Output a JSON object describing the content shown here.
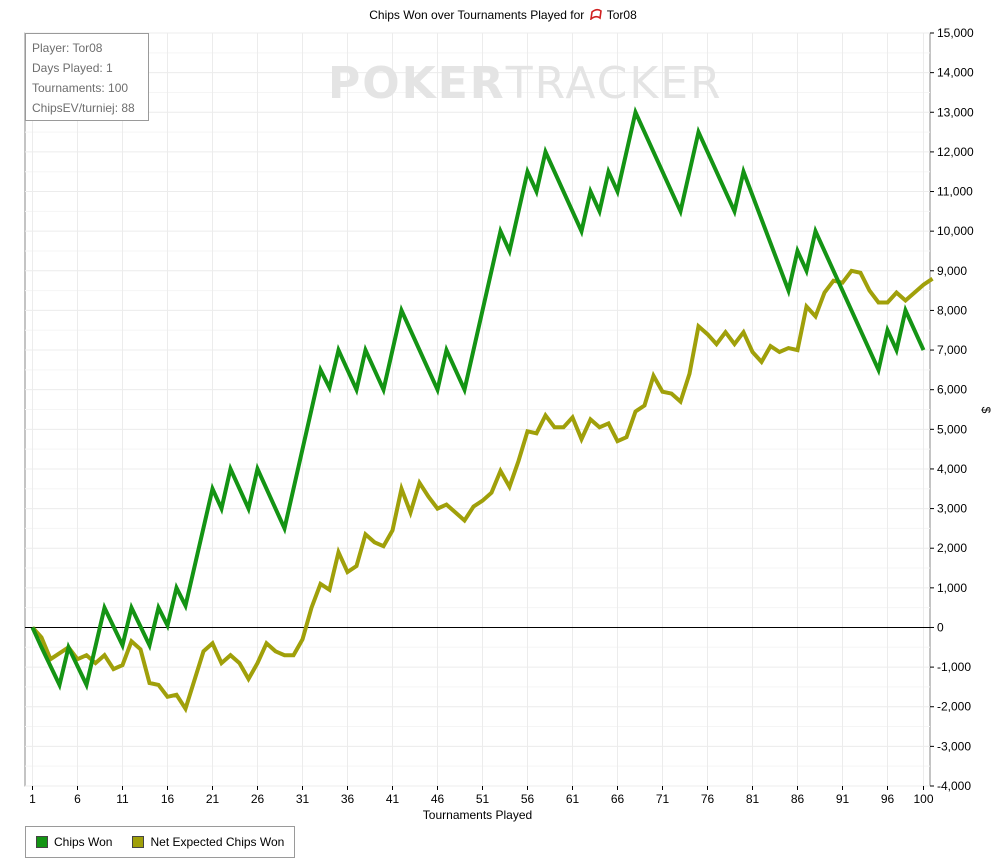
{
  "title": "Chips Won over Tournaments Played for",
  "player_name": "Tor08",
  "info": {
    "player": "Player: Tor08",
    "days": "Days Played: 1",
    "tournaments": "Tournaments: 100",
    "chipsev": "ChipsEV/turniej: 88"
  },
  "watermark": {
    "bold": "POKER",
    "thin": "TRACKER"
  },
  "colors": {
    "chips_won": "#149414",
    "net_expected": "#a0a00a",
    "grid": "#ececec",
    "axis": "#000000"
  },
  "chart_data": {
    "type": "line",
    "xlabel": "Tournaments Played",
    "ylabel": "$",
    "xlim": [
      1,
      100
    ],
    "ylim": [
      -4000,
      15000
    ],
    "x_ticks": [
      1,
      6,
      11,
      16,
      21,
      26,
      31,
      36,
      41,
      46,
      51,
      56,
      61,
      66,
      71,
      76,
      81,
      86,
      91,
      96,
      100
    ],
    "y_ticks": [
      -4000,
      -3000,
      -2000,
      -1000,
      0,
      1000,
      2000,
      3000,
      4000,
      5000,
      6000,
      7000,
      8000,
      9000,
      10000,
      11000,
      12000,
      13000,
      14000,
      15000
    ],
    "y_tick_labels": [
      "-4,000",
      "-3,000",
      "-2,000",
      "-1,000",
      "0",
      "1,000",
      "2,000",
      "3,000",
      "4,000",
      "5,000",
      "6,000",
      "7,000",
      "8,000",
      "9,000",
      "10,000",
      "11,000",
      "12,000",
      "13,000",
      "14,000",
      "15,000"
    ],
    "grid": true,
    "legend_position": "bottom-left",
    "series": [
      {
        "name": "Chips Won",
        "points": [
          [
            0,
            0
          ],
          [
            1,
            -500
          ],
          [
            3,
            -1450
          ],
          [
            4,
            -500
          ],
          [
            6,
            -1450
          ],
          [
            8,
            500
          ],
          [
            10,
            -450
          ],
          [
            11,
            500
          ],
          [
            13,
            -450
          ],
          [
            14,
            500
          ],
          [
            15,
            50
          ],
          [
            16,
            1000
          ],
          [
            17,
            550
          ],
          [
            20,
            3500
          ],
          [
            21,
            3000
          ],
          [
            22,
            4000
          ],
          [
            24,
            3000
          ],
          [
            25,
            4000
          ],
          [
            28,
            2500
          ],
          [
            32,
            6500
          ],
          [
            33,
            6050
          ],
          [
            34,
            7000
          ],
          [
            36,
            6000
          ],
          [
            37,
            7000
          ],
          [
            39,
            6000
          ],
          [
            41,
            8000
          ],
          [
            45,
            6000
          ],
          [
            46,
            7000
          ],
          [
            48,
            6000
          ],
          [
            52,
            10000
          ],
          [
            53,
            9500
          ],
          [
            55,
            11500
          ],
          [
            56,
            11000
          ],
          [
            57,
            12000
          ],
          [
            61,
            10000
          ],
          [
            62,
            11000
          ],
          [
            63,
            10500
          ],
          [
            64,
            11500
          ],
          [
            65,
            11000
          ],
          [
            67,
            13000
          ],
          [
            72,
            10500
          ],
          [
            74,
            12500
          ],
          [
            78,
            10500
          ],
          [
            79,
            11500
          ],
          [
            84,
            8500
          ],
          [
            85,
            9500
          ],
          [
            86,
            9000
          ],
          [
            87,
            10000
          ],
          [
            94,
            6500
          ],
          [
            95,
            7500
          ],
          [
            96,
            7000
          ],
          [
            97,
            8000
          ],
          [
            99,
            7000
          ]
        ]
      },
      {
        "name": "Net Expected Chips Won",
        "points": [
          [
            0,
            0
          ],
          [
            1,
            -250
          ],
          [
            2,
            -800
          ],
          [
            4,
            -500
          ],
          [
            5,
            -800
          ],
          [
            6,
            -700
          ],
          [
            7,
            -900
          ],
          [
            8,
            -700
          ],
          [
            9,
            -1050
          ],
          [
            10,
            -950
          ],
          [
            11,
            -350
          ],
          [
            12,
            -550
          ],
          [
            13,
            -1400
          ],
          [
            14,
            -1450
          ],
          [
            15,
            -1750
          ],
          [
            16,
            -1700
          ],
          [
            17,
            -2050
          ],
          [
            19,
            -600
          ],
          [
            20,
            -400
          ],
          [
            21,
            -900
          ],
          [
            22,
            -700
          ],
          [
            23,
            -900
          ],
          [
            24,
            -1300
          ],
          [
            25,
            -900
          ],
          [
            26,
            -400
          ],
          [
            27,
            -600
          ],
          [
            28,
            -700
          ],
          [
            29,
            -700
          ],
          [
            30,
            -300
          ],
          [
            31,
            500
          ],
          [
            32,
            1100
          ],
          [
            33,
            950
          ],
          [
            34,
            1900
          ],
          [
            35,
            1400
          ],
          [
            36,
            1550
          ],
          [
            37,
            2350
          ],
          [
            38,
            2150
          ],
          [
            39,
            2050
          ],
          [
            40,
            2450
          ],
          [
            41,
            3500
          ],
          [
            42,
            2900
          ],
          [
            43,
            3650
          ],
          [
            44,
            3300
          ],
          [
            45,
            3000
          ],
          [
            46,
            3100
          ],
          [
            47,
            2900
          ],
          [
            48,
            2700
          ],
          [
            49,
            3050
          ],
          [
            50,
            3200
          ],
          [
            51,
            3400
          ],
          [
            52,
            3950
          ],
          [
            53,
            3550
          ],
          [
            54,
            4200
          ],
          [
            55,
            4950
          ],
          [
            56,
            4900
          ],
          [
            57,
            5350
          ],
          [
            58,
            5050
          ],
          [
            59,
            5050
          ],
          [
            60,
            5300
          ],
          [
            61,
            4750
          ],
          [
            62,
            5250
          ],
          [
            63,
            5050
          ],
          [
            64,
            5150
          ],
          [
            65,
            4700
          ],
          [
            66,
            4800
          ],
          [
            67,
            5450
          ],
          [
            68,
            5600
          ],
          [
            69,
            6350
          ],
          [
            70,
            5950
          ],
          [
            71,
            5900
          ],
          [
            72,
            5700
          ],
          [
            73,
            6400
          ],
          [
            74,
            7600
          ],
          [
            75,
            7400
          ],
          [
            76,
            7150
          ],
          [
            77,
            7450
          ],
          [
            78,
            7150
          ],
          [
            79,
            7450
          ],
          [
            80,
            6950
          ],
          [
            81,
            6700
          ],
          [
            82,
            7100
          ],
          [
            83,
            6950
          ],
          [
            84,
            7050
          ],
          [
            85,
            7000
          ],
          [
            86,
            8100
          ],
          [
            87,
            7850
          ],
          [
            88,
            8450
          ],
          [
            89,
            8750
          ],
          [
            90,
            8700
          ],
          [
            91,
            9000
          ],
          [
            92,
            8950
          ],
          [
            93,
            8500
          ],
          [
            94,
            8200
          ],
          [
            95,
            8200
          ],
          [
            96,
            8450
          ],
          [
            97,
            8250
          ],
          [
            98,
            8450
          ],
          [
            99,
            8650
          ],
          [
            100,
            8800
          ]
        ]
      }
    ]
  }
}
